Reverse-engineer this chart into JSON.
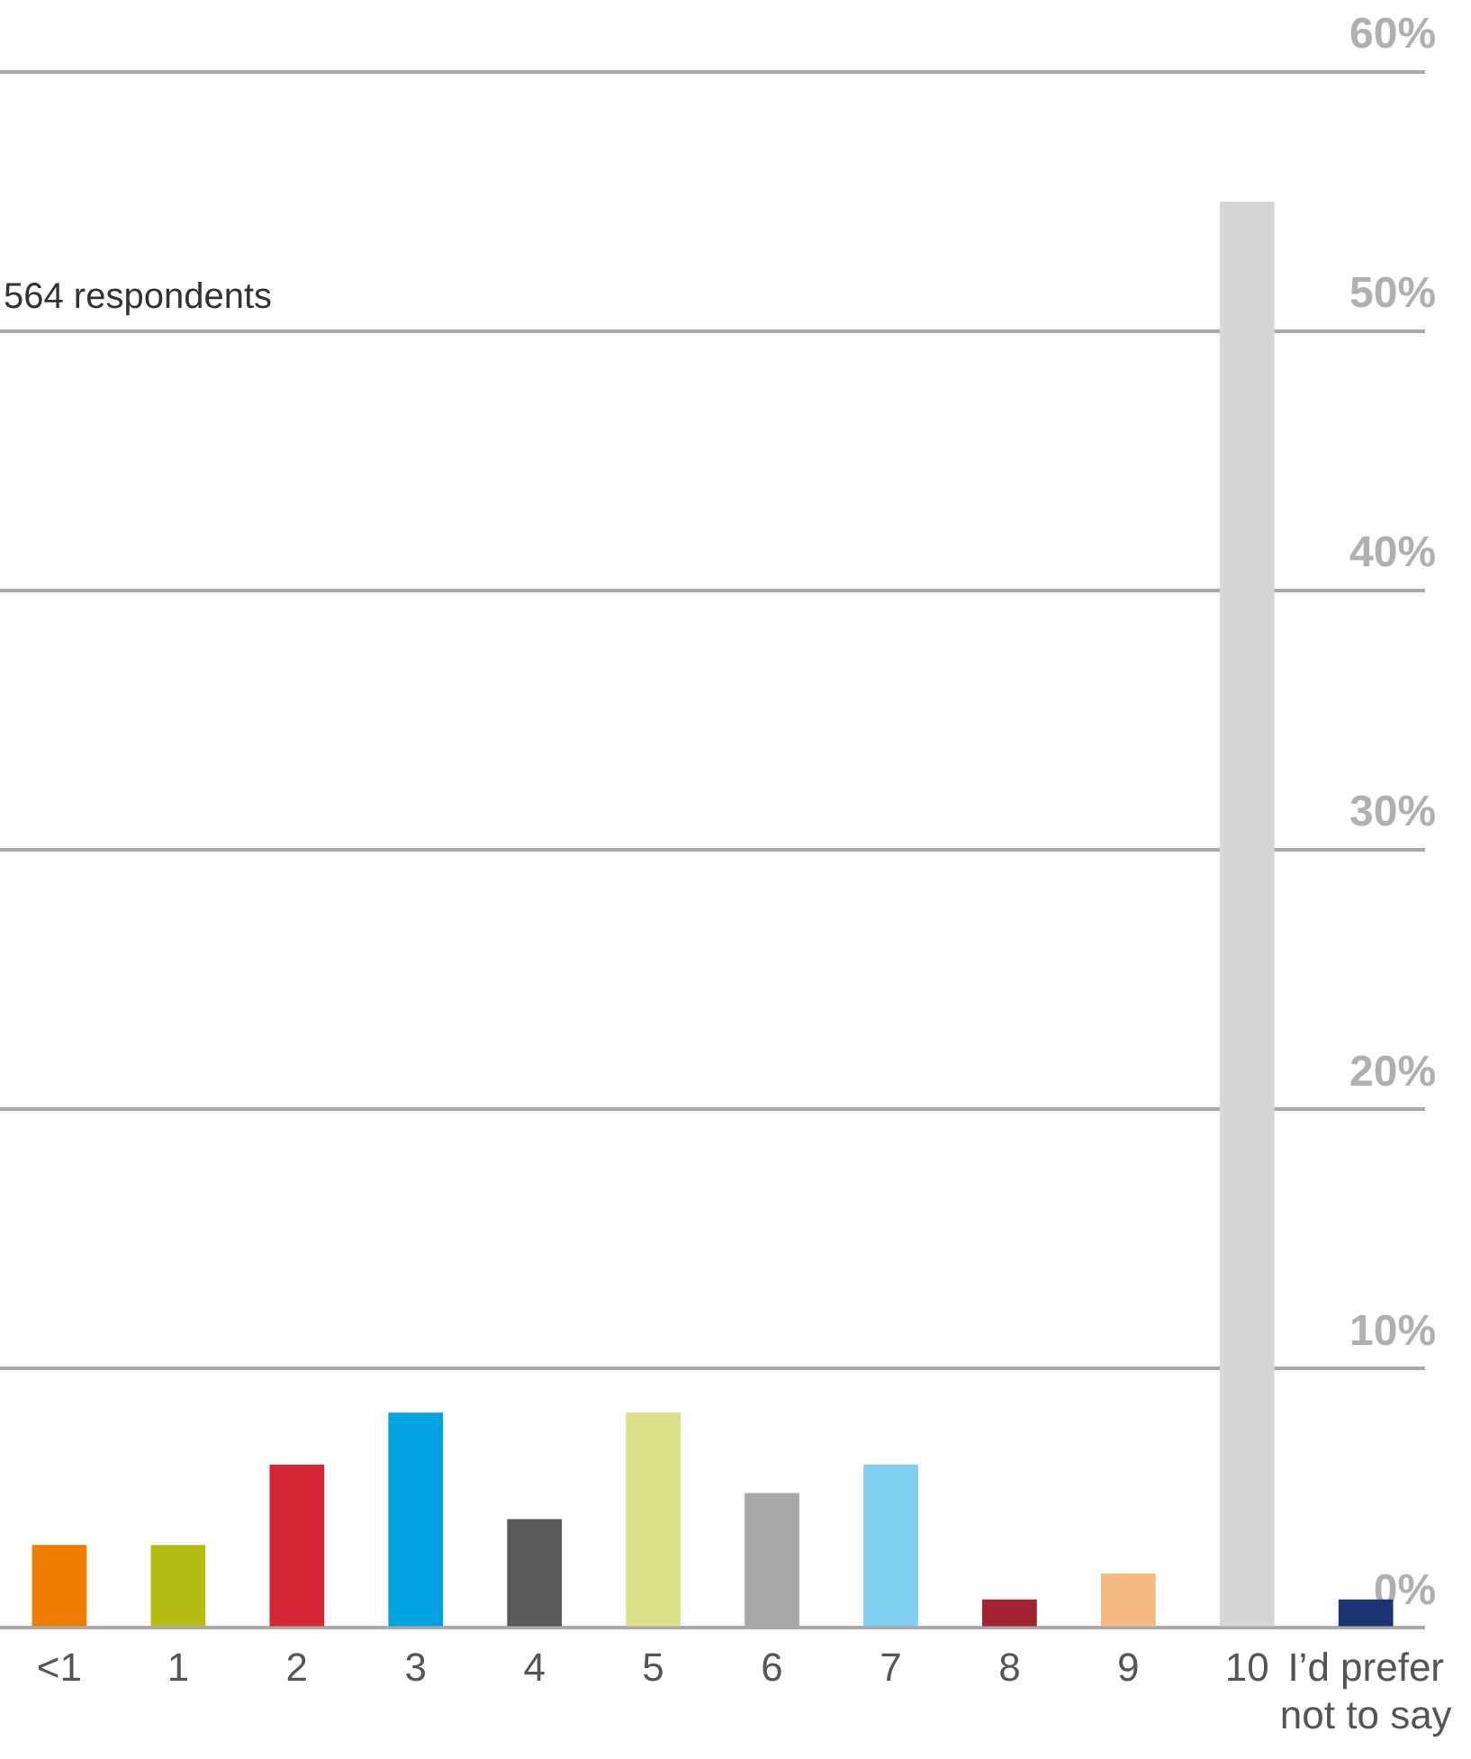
{
  "chart_data": {
    "type": "bar",
    "categories": [
      "<1",
      "1",
      "2",
      "3",
      "4",
      "5",
      "6",
      "7",
      "8",
      "9",
      "10",
      "I’d prefer not to say"
    ],
    "values": [
      3.2,
      3.2,
      6.3,
      8.3,
      4.2,
      8.3,
      5.2,
      6.3,
      1.1,
      2.1,
      55,
      1.1
    ],
    "colors": [
      "#f07d00",
      "#b5bd12",
      "#d52633",
      "#00a3df",
      "#58595b",
      "#dbe08a",
      "#a7a8aa",
      "#7ed0ee",
      "#a2232f",
      "#f5b982",
      "#d6d6d6",
      "#1b3370"
    ],
    "ylim": [
      0,
      60
    ],
    "yticks": [
      {
        "value": 0,
        "label": "0%"
      },
      {
        "value": 10,
        "label": "10%"
      },
      {
        "value": 20,
        "label": "20%"
      },
      {
        "value": 30,
        "label": "30%"
      },
      {
        "value": 40,
        "label": "40%"
      },
      {
        "value": 50,
        "label": "50%"
      },
      {
        "value": 60,
        "label": "60%"
      }
    ],
    "grid": "y",
    "legend": false,
    "annotations": [
      "564 respondents"
    ]
  }
}
